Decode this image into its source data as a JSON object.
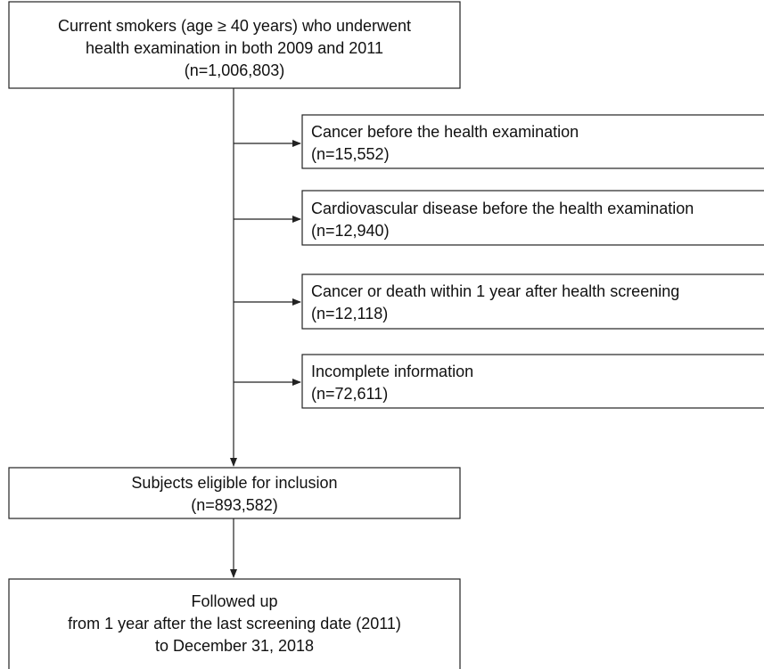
{
  "nodes": [
    {
      "lines": [
        "Current smokers (age ≥ 40 years) who underwent",
        "health examination in both 2009 and 2011",
        "(n=1,006,803)"
      ]
    },
    {
      "lines": [
        "Cancer before the health examination",
        "(n=15,552)"
      ]
    },
    {
      "lines": [
        "Cardiovascular disease before the health examination",
        "(n=12,940)"
      ]
    },
    {
      "lines": [
        "Cancer or death within 1 year after health screening",
        "(n=12,118)"
      ]
    },
    {
      "lines": [
        "Incomplete information",
        "(n=72,611)"
      ]
    },
    {
      "lines": [
        "Subjects eligible for inclusion",
        "(n=893,582)"
      ]
    },
    {
      "lines": [
        "Followed up",
        "from 1 year after the last screening date (2011)",
        "to December 31, 2018"
      ]
    }
  ]
}
